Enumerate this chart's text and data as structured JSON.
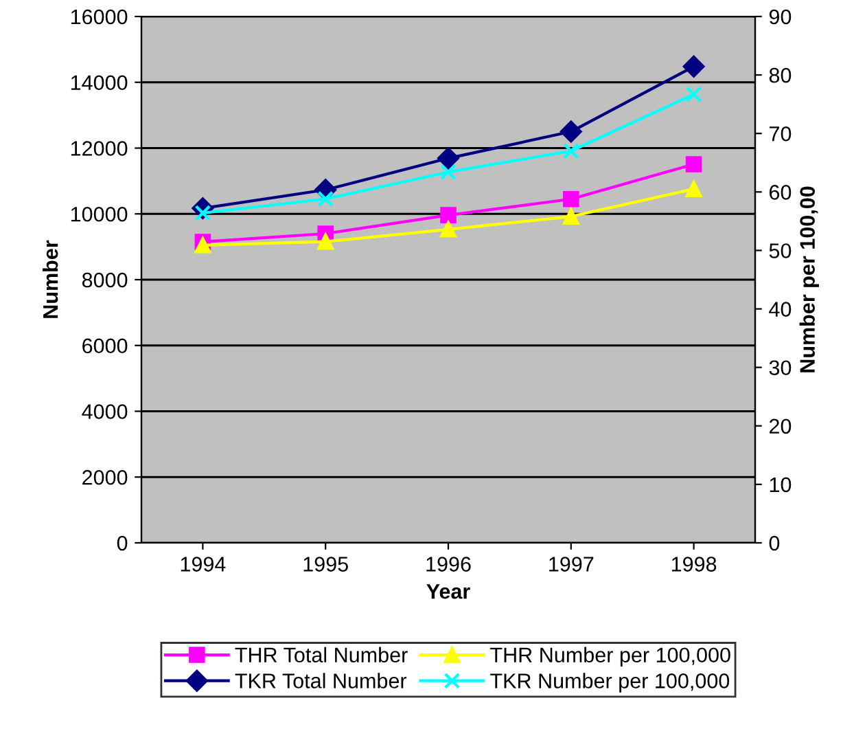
{
  "chart_data": {
    "type": "line",
    "xlabel": "Year",
    "ylabel": "Number",
    "y2label": "Number per 100,00",
    "categories": [
      "1994",
      "1995",
      "1996",
      "1997",
      "1998"
    ],
    "ylim": [
      0,
      16000
    ],
    "yticks": [
      0,
      2000,
      4000,
      6000,
      8000,
      10000,
      12000,
      14000,
      16000
    ],
    "y2lim": [
      0,
      90
    ],
    "y2ticks": [
      0,
      10,
      20,
      30,
      40,
      50,
      60,
      70,
      80,
      90
    ],
    "grid": "y",
    "legend": "bottom",
    "series": [
      {
        "name": "THR Total Number",
        "color": "#ff00ff",
        "marker": "square",
        "values": [
          9150,
          9400,
          9960,
          10450,
          11510
        ]
      },
      {
        "name": "TKR Total Number",
        "color": "#000080",
        "marker": "diamond",
        "values": [
          10170,
          10730,
          11690,
          12500,
          14480
        ]
      },
      {
        "name": "THR Number per 100,000",
        "color": "#ffff00",
        "marker": "triangle",
        "axis": "y2",
        "values": [
          50.9,
          51.5,
          53.6,
          55.8,
          60.5
        ]
      },
      {
        "name": "TKR Number per 100,000",
        "color": "#00ffff",
        "marker": "cross",
        "axis": "y2",
        "values": [
          56.4,
          58.8,
          63.4,
          67.0,
          76.7
        ]
      }
    ]
  }
}
